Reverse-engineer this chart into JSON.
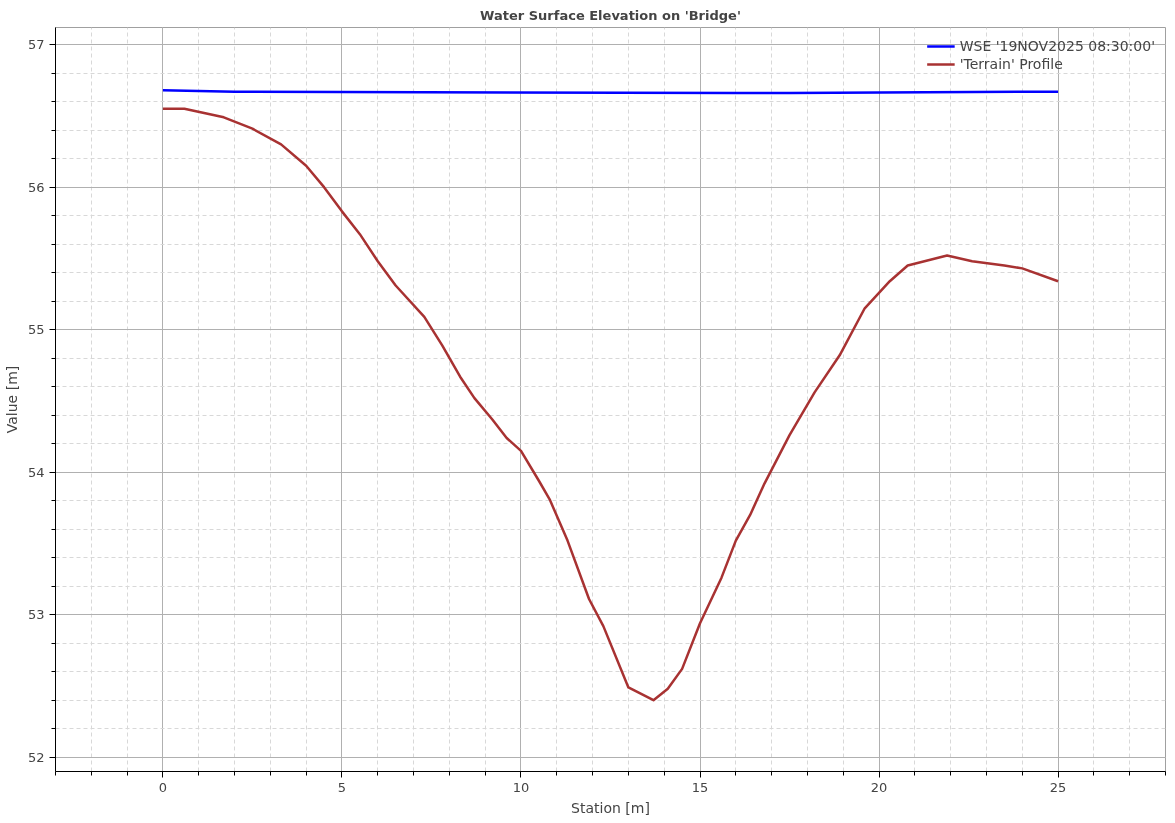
{
  "chart_data": {
    "type": "line",
    "title": "Water Surface Elevation on 'Bridge'",
    "xlabel": "Station [m]",
    "ylabel": "Value [m]",
    "xlim": [
      -3,
      28
    ],
    "ylim": [
      51.9,
      57.12
    ],
    "xticks": [
      0,
      5,
      10,
      15,
      20,
      25
    ],
    "yticks": [
      52,
      53,
      54,
      55,
      56,
      57
    ],
    "grid": true,
    "legend": "top right",
    "line_style": "solid",
    "marker": "none",
    "series": [
      {
        "name": "WSE '19NOV2025 08:30:00'",
        "color": "#0000ff",
        "x": [
          0,
          2,
          16,
          17.5,
          25
        ],
        "values": [
          56.68,
          56.67,
          56.66,
          56.66,
          56.67
        ]
      },
      {
        "name": "'Terrain' Profile",
        "color": "#a83232",
        "x": [
          0,
          0.6,
          1.7,
          2.5,
          3.3,
          4.0,
          4.5,
          5.0,
          5.5,
          6.0,
          6.5,
          7.3,
          7.8,
          8.3,
          8.7,
          9.2,
          9.6,
          10.0,
          10.5,
          10.8,
          11.3,
          11.9,
          12.3,
          13.0,
          13.7,
          14.1,
          14.5,
          15.0,
          15.6,
          16.0,
          16.4,
          16.8,
          17.5,
          18.2,
          18.9,
          19.6,
          20.3,
          20.8,
          21.9,
          22.6,
          23.5,
          24.0,
          25.0
        ],
        "values": [
          56.55,
          56.55,
          56.49,
          56.41,
          56.3,
          56.15,
          56.0,
          55.83,
          55.67,
          55.48,
          55.31,
          55.09,
          54.89,
          54.67,
          54.52,
          54.37,
          54.24,
          54.15,
          53.94,
          53.81,
          53.52,
          53.11,
          52.92,
          52.49,
          52.4,
          52.48,
          52.62,
          52.94,
          53.26,
          53.52,
          53.7,
          53.92,
          54.26,
          54.56,
          54.82,
          55.15,
          55.34,
          55.45,
          55.52,
          55.48,
          55.45,
          55.43,
          55.34
        ]
      }
    ]
  }
}
